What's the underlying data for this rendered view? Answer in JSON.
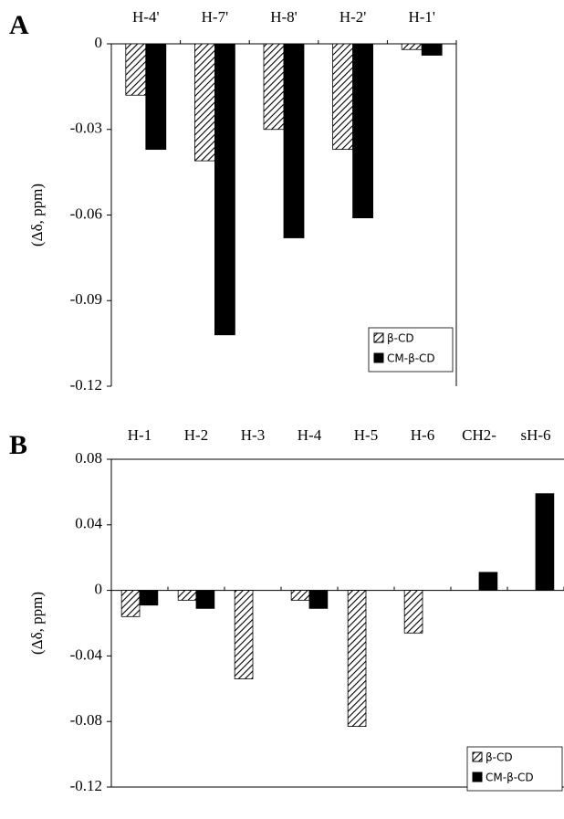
{
  "chart_data": [
    {
      "type": "bar",
      "panel": "A",
      "ylabel": "(Δδ, ppm)",
      "categories": [
        "H-4'",
        "H-7'",
        "H-8'",
        "H-2'",
        "H-1'"
      ],
      "series": [
        {
          "name": "β-CD",
          "color": "#000000",
          "hatch": true,
          "values": [
            -0.018,
            -0.041,
            -0.03,
            -0.037,
            -0.002
          ]
        },
        {
          "name": "CM-β-CD",
          "color": "#000000",
          "hatch": false,
          "values": [
            -0.037,
            -0.102,
            -0.068,
            -0.061,
            -0.004
          ]
        }
      ],
      "ylim": [
        -0.12,
        0
      ],
      "yticks": [
        0,
        -0.03,
        -0.06,
        -0.09,
        -0.12
      ],
      "legend": "lower right",
      "grid": false
    },
    {
      "type": "bar",
      "panel": "B",
      "ylabel": "(Δδ, ppm)",
      "categories": [
        "H-1",
        "H-2",
        "H-3",
        "H-4",
        "H-5",
        "H-6",
        "CH2-",
        "sH-6"
      ],
      "series": [
        {
          "name": "β-CD",
          "color": "#000000",
          "hatch": true,
          "values": [
            -0.016,
            -0.006,
            -0.054,
            -0.006,
            -0.083,
            -0.026,
            null,
            null
          ]
        },
        {
          "name": "CM-β-CD",
          "color": "#000000",
          "hatch": false,
          "values": [
            -0.009,
            -0.011,
            null,
            -0.011,
            null,
            null,
            0.011,
            0.059
          ]
        }
      ],
      "ylim": [
        -0.12,
        0.08
      ],
      "yticks": [
        0.08,
        0.04,
        0,
        -0.04,
        -0.08,
        -0.12
      ],
      "legend": "lower right",
      "grid": false
    }
  ]
}
